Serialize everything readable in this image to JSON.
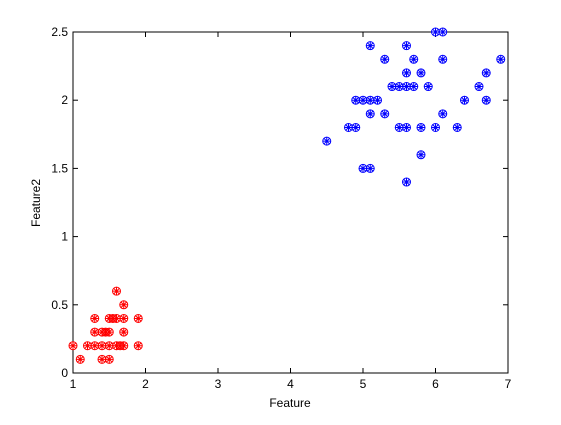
{
  "chart_data": {
    "type": "scatter",
    "xlabel": "Feature",
    "ylabel": "Feature2",
    "xlim": [
      1,
      7
    ],
    "xticks": [
      1,
      2,
      3,
      4,
      5,
      6,
      7
    ],
    "ylim": [
      0,
      2.5
    ],
    "yticks": [
      0,
      0.5,
      1,
      1.5,
      2,
      2.5
    ],
    "series": [
      {
        "color": "#ff0000",
        "x": [
          1.0,
          1.1,
          1.2,
          1.3,
          1.3,
          1.3,
          1.4,
          1.4,
          1.4,
          1.5,
          1.5,
          1.5,
          1.5,
          1.6,
          1.6,
          1.6,
          1.7,
          1.7,
          1.7,
          1.7,
          1.9,
          1.9,
          1.45,
          1.55,
          1.65
        ],
        "values": [
          0.2,
          0.1,
          0.2,
          0.2,
          0.3,
          0.4,
          0.2,
          0.3,
          0.1,
          0.2,
          0.1,
          0.3,
          0.4,
          0.2,
          0.4,
          0.6,
          0.2,
          0.3,
          0.4,
          0.5,
          0.2,
          0.4,
          0.3,
          0.4,
          0.2
        ]
      },
      {
        "color": "#0000ff",
        "x": [
          6.0,
          5.1,
          5.9,
          5.6,
          5.8,
          6.6,
          4.5,
          6.3,
          5.8,
          6.1,
          5.1,
          5.3,
          5.5,
          5.0,
          5.1,
          5.3,
          5.5,
          6.7,
          6.9,
          5.0,
          5.7,
          4.9,
          6.7,
          4.9,
          5.7,
          6.0,
          4.8,
          5.6,
          5.8,
          6.1,
          6.4,
          5.6,
          5.1,
          5.6,
          6.1,
          5.6,
          5.4,
          5.2
        ],
        "values": [
          2.5,
          1.9,
          2.1,
          1.8,
          2.2,
          2.1,
          1.7,
          1.8,
          1.8,
          2.5,
          2.0,
          1.9,
          2.1,
          2.0,
          2.4,
          2.3,
          1.8,
          2.2,
          2.3,
          1.5,
          2.3,
          2.0,
          2.0,
          1.8,
          2.1,
          1.8,
          1.8,
          2.1,
          1.6,
          1.9,
          2.0,
          2.2,
          1.5,
          1.4,
          2.3,
          2.4,
          2.1,
          2.0
        ]
      }
    ]
  }
}
